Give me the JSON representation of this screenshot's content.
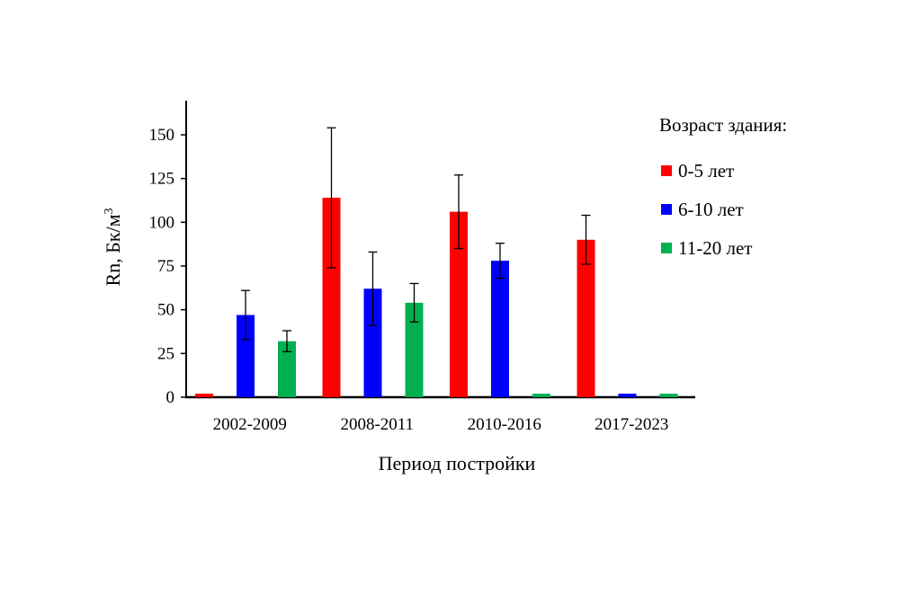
{
  "chart_data": {
    "type": "bar",
    "categories": [
      "2002-2009",
      "2008-2011",
      "2010-2016",
      "2017-2023"
    ],
    "series": [
      {
        "name": "0-5 лет",
        "color": "#ff0000",
        "values": [
          2,
          114,
          106,
          90
        ],
        "error": [
          null,
          40,
          21,
          14
        ]
      },
      {
        "name": "6-10 лет",
        "color": "#0000ff",
        "values": [
          47,
          62,
          78,
          2
        ],
        "error": [
          14,
          21,
          10,
          null
        ]
      },
      {
        "name": "11-20 лет",
        "color": "#00b050",
        "values": [
          32,
          54,
          2,
          2
        ],
        "error": [
          6,
          11,
          null,
          null
        ]
      }
    ],
    "xlabel": "Период постройки",
    "ylabel": "Rn, Бк/м",
    "ylabel_sup": "3",
    "legend_title": "Возраст здания:",
    "legend_position": "right",
    "ylim": [
      0,
      170
    ],
    "yticks": [
      "0",
      "25",
      "50",
      "75",
      "100",
      "125",
      "150"
    ],
    "grid": false
  }
}
